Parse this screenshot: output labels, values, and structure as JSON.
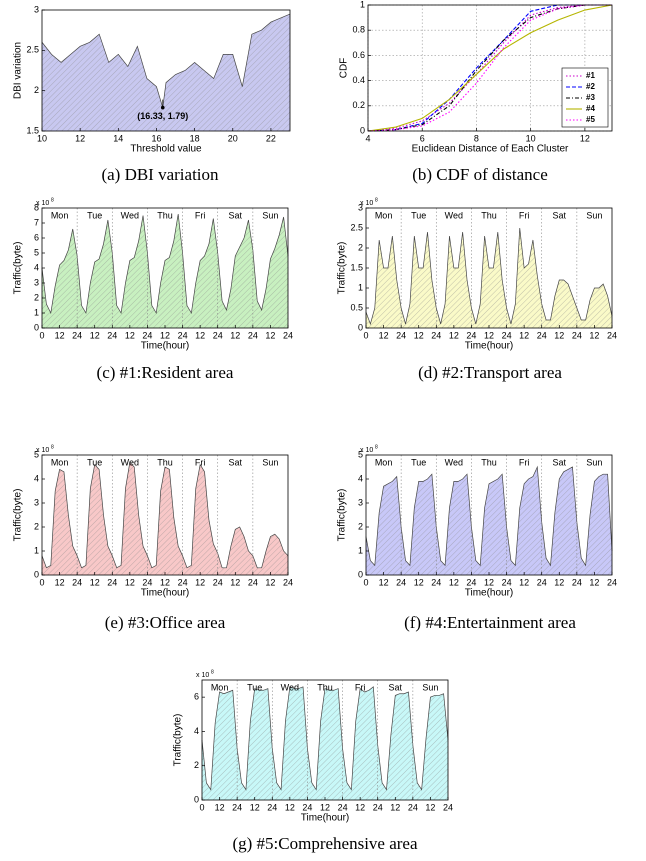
{
  "chart_data": [
    {
      "type": "area",
      "caption": "(a) DBI variation",
      "x_label": "Threshold value",
      "y_label": "DBI variation",
      "color": "#c8c8f0",
      "x": [
        10,
        10.5,
        11,
        11.5,
        12,
        12.5,
        13,
        13.5,
        14,
        14.5,
        15,
        15.5,
        16,
        16.33,
        16.5,
        17,
        17.5,
        18,
        18.5,
        19,
        19.5,
        20,
        20.5,
        21,
        21.5,
        22,
        22.5,
        23
      ],
      "values": [
        2.6,
        2.45,
        2.35,
        2.45,
        2.55,
        2.6,
        2.7,
        2.35,
        2.45,
        2.3,
        2.55,
        2.15,
        2.05,
        1.79,
        2.1,
        2.2,
        2.25,
        2.35,
        2.25,
        2.15,
        2.45,
        2.45,
        2.05,
        2.7,
        2.75,
        2.85,
        2.9,
        2.95
      ],
      "xlim": [
        10,
        23
      ],
      "xticks": [
        10,
        12,
        14,
        16,
        18,
        20,
        22
      ],
      "ylim": [
        1.5,
        3
      ],
      "yticks": [
        1.5,
        2,
        2.5,
        3
      ],
      "grid": false,
      "annotation": {
        "text": "(16.33, 1.79)",
        "x": 16.33,
        "y": 1.79
      }
    },
    {
      "type": "line",
      "caption": "(b) CDF of distance",
      "x_label": "Euclidean Distance of Each Cluster",
      "y_label": "CDF",
      "x": [
        4,
        5,
        6,
        7,
        8,
        9,
        10,
        11,
        12,
        13
      ],
      "series": [
        {
          "name": "#1",
          "color": "#cc00cc",
          "linestyle": ":",
          "values": [
            0,
            0.02,
            0.08,
            0.22,
            0.45,
            0.7,
            0.92,
            0.98,
            1,
            1
          ]
        },
        {
          "name": "#2",
          "color": "#0000ff",
          "linestyle": "--",
          "values": [
            0,
            0.01,
            0.06,
            0.25,
            0.5,
            0.72,
            0.95,
            1,
            1,
            1
          ]
        },
        {
          "name": "#3",
          "color": "#000000",
          "linestyle": "-.",
          "values": [
            0,
            0.01,
            0.05,
            0.2,
            0.48,
            0.72,
            0.9,
            0.97,
            1,
            1
          ]
        },
        {
          "name": "#4",
          "color": "#b5b500",
          "linestyle": "-",
          "values": [
            0,
            0.03,
            0.1,
            0.25,
            0.45,
            0.65,
            0.78,
            0.88,
            0.96,
            1
          ]
        },
        {
          "name": "#5",
          "color": "#ff00ff",
          "linestyle": ":",
          "values": [
            0,
            0.01,
            0.04,
            0.15,
            0.38,
            0.66,
            0.88,
            0.97,
            1,
            1
          ]
        }
      ],
      "xlim": [
        4,
        13
      ],
      "xticks": [
        4,
        6,
        8,
        10,
        12
      ],
      "ylim": [
        0,
        1
      ],
      "yticks": [
        0,
        0.2,
        0.4,
        0.6,
        0.8,
        1
      ],
      "grid": true,
      "legend": "lower right"
    },
    {
      "type": "area",
      "caption": "(c) #1:Resident area",
      "x_label": "Time(hour)",
      "y_label": "Traffic(byte)",
      "color": "#c8f0c0",
      "y_multiplier": {
        "base": "x 10",
        "exponent": "8"
      },
      "days": [
        "Mon",
        "Tue",
        "Wed",
        "Thu",
        "Fri",
        "Sat",
        "Sun"
      ],
      "x": [
        0,
        3,
        6,
        9,
        12,
        15,
        18,
        21,
        24,
        27,
        30,
        33,
        36,
        39,
        42,
        45,
        48,
        51,
        54,
        57,
        60,
        63,
        66,
        69,
        72,
        75,
        78,
        81,
        84,
        87,
        90,
        93,
        96,
        99,
        102,
        105,
        108,
        111,
        114,
        117,
        120,
        123,
        126,
        129,
        132,
        135,
        138,
        141,
        144,
        147,
        150,
        153,
        156,
        159,
        162,
        165,
        168
      ],
      "values": [
        4.0,
        1.6,
        1.0,
        2.8,
        4.2,
        4.5,
        5.2,
        6.6,
        4.8,
        1.5,
        1.0,
        3.0,
        4.4,
        4.6,
        5.6,
        7.2,
        5.0,
        1.5,
        1.0,
        3.0,
        4.5,
        4.7,
        5.8,
        7.5,
        5.0,
        1.5,
        1.0,
        3.0,
        4.5,
        4.7,
        5.8,
        7.6,
        5.0,
        1.5,
        1.0,
        3.0,
        4.5,
        4.8,
        5.6,
        7.3,
        5.0,
        1.8,
        1.2,
        2.6,
        4.8,
        5.4,
        6.0,
        7.2,
        5.2,
        1.8,
        1.2,
        2.6,
        4.6,
        5.3,
        6.2,
        7.4,
        4.8
      ],
      "xlim": [
        0,
        168
      ],
      "xticks": [
        0,
        12,
        24,
        {
          "value": 36,
          "label": "12"
        },
        {
          "value": 48,
          "label": "24"
        },
        {
          "value": 60,
          "label": "12"
        },
        {
          "value": 72,
          "label": "24"
        },
        {
          "value": 84,
          "label": "12"
        },
        {
          "value": 96,
          "label": "24"
        },
        {
          "value": 108,
          "label": "12"
        },
        {
          "value": 120,
          "label": "24"
        },
        {
          "value": 132,
          "label": "12"
        },
        {
          "value": 144,
          "label": "24"
        },
        {
          "value": 156,
          "label": "12"
        },
        {
          "value": 168,
          "label": "24"
        }
      ],
      "ylim": [
        0,
        8
      ],
      "yticks": [
        0,
        1,
        2,
        3,
        4,
        5,
        6,
        7,
        8
      ],
      "grid": false
    },
    {
      "type": "area",
      "caption": "(d) #2:Transport area",
      "x_label": "Time(hour)",
      "y_label": "Traffic(byte)",
      "color": "#fafac8",
      "y_multiplier": {
        "base": "x 10",
        "exponent": "8"
      },
      "days": [
        "Mon",
        "Tue",
        "Wed",
        "Thu",
        "Fri",
        "Sat",
        "Sun"
      ],
      "x": [
        0,
        3,
        6,
        9,
        12,
        15,
        18,
        21,
        24,
        27,
        30,
        33,
        36,
        39,
        42,
        45,
        48,
        51,
        54,
        57,
        60,
        63,
        66,
        69,
        72,
        75,
        78,
        81,
        84,
        87,
        90,
        93,
        96,
        99,
        102,
        105,
        108,
        111,
        114,
        117,
        120,
        123,
        126,
        129,
        132,
        135,
        138,
        141,
        144,
        147,
        150,
        153,
        156,
        159,
        162,
        165,
        168
      ],
      "values": [
        0.4,
        0.1,
        0.5,
        2.2,
        1.5,
        1.5,
        2.3,
        1.2,
        0.5,
        0.1,
        0.6,
        2.3,
        1.5,
        1.5,
        2.4,
        1.2,
        0.5,
        0.1,
        0.6,
        2.3,
        1.5,
        1.5,
        2.4,
        1.2,
        0.5,
        0.1,
        0.6,
        2.3,
        1.5,
        1.5,
        2.4,
        1.2,
        0.5,
        0.1,
        0.6,
        2.5,
        1.5,
        1.6,
        2.2,
        1.3,
        0.6,
        0.2,
        0.2,
        0.8,
        1.2,
        1.2,
        1.1,
        0.8,
        0.5,
        0.2,
        0.2,
        0.7,
        1.0,
        1.0,
        1.1,
        0.8,
        0.3
      ],
      "xlim": [
        0,
        168
      ],
      "xticks": [
        0,
        12,
        24,
        {
          "value": 36,
          "label": "12"
        },
        {
          "value": 48,
          "label": "24"
        },
        {
          "value": 60,
          "label": "12"
        },
        {
          "value": 72,
          "label": "24"
        },
        {
          "value": 84,
          "label": "12"
        },
        {
          "value": 96,
          "label": "24"
        },
        {
          "value": 108,
          "label": "12"
        },
        {
          "value": 120,
          "label": "24"
        },
        {
          "value": 132,
          "label": "12"
        },
        {
          "value": 144,
          "label": "24"
        },
        {
          "value": 156,
          "label": "12"
        },
        {
          "value": 168,
          "label": "24"
        }
      ],
      "ylim": [
        0,
        3
      ],
      "yticks": [
        0,
        0.5,
        1,
        1.5,
        2,
        2.5,
        3
      ],
      "grid": false
    },
    {
      "type": "area",
      "caption": "(e) #3:Office area",
      "x_label": "Time(hour)",
      "y_label": "Traffic(byte)",
      "color": "#f8c8c8",
      "y_multiplier": {
        "base": "x 10",
        "exponent": "8"
      },
      "days": [
        "Mon",
        "Tue",
        "Wed",
        "Thu",
        "Fri",
        "Sat",
        "Sun"
      ],
      "x": [
        0,
        3,
        6,
        9,
        12,
        15,
        18,
        21,
        24,
        27,
        30,
        33,
        36,
        39,
        42,
        45,
        48,
        51,
        54,
        57,
        60,
        63,
        66,
        69,
        72,
        75,
        78,
        81,
        84,
        87,
        90,
        93,
        96,
        99,
        102,
        105,
        108,
        111,
        114,
        117,
        120,
        123,
        126,
        129,
        132,
        135,
        138,
        141,
        144,
        147,
        150,
        153,
        156,
        159,
        162,
        165,
        168
      ],
      "values": [
        0.8,
        0.3,
        0.4,
        3.5,
        4.4,
        4.3,
        2.5,
        1.2,
        0.8,
        0.3,
        0.4,
        3.6,
        4.6,
        4.4,
        2.5,
        1.2,
        0.8,
        0.3,
        0.4,
        3.6,
        4.7,
        4.5,
        2.5,
        1.2,
        0.8,
        0.3,
        0.4,
        3.5,
        4.5,
        4.4,
        2.4,
        1.2,
        0.8,
        0.3,
        0.4,
        3.6,
        4.6,
        4.3,
        2.3,
        1.3,
        0.9,
        0.3,
        0.3,
        1.2,
        1.9,
        2.0,
        1.6,
        1.0,
        0.8,
        0.3,
        0.3,
        1.0,
        1.6,
        1.7,
        1.5,
        1.0,
        0.8
      ],
      "xlim": [
        0,
        168
      ],
      "xticks": [
        0,
        12,
        24,
        {
          "value": 36,
          "label": "12"
        },
        {
          "value": 48,
          "label": "24"
        },
        {
          "value": 60,
          "label": "12"
        },
        {
          "value": 72,
          "label": "24"
        },
        {
          "value": 84,
          "label": "12"
        },
        {
          "value": 96,
          "label": "24"
        },
        {
          "value": 108,
          "label": "12"
        },
        {
          "value": 120,
          "label": "24"
        },
        {
          "value": 132,
          "label": "12"
        },
        {
          "value": 144,
          "label": "24"
        },
        {
          "value": 156,
          "label": "12"
        },
        {
          "value": 168,
          "label": "24"
        }
      ],
      "ylim": [
        0,
        5
      ],
      "yticks": [
        0,
        1,
        2,
        3,
        4,
        5
      ],
      "grid": false
    },
    {
      "type": "area",
      "caption": "(f) #4:Entertainment area",
      "x_label": "Time(hour)",
      "y_label": "Traffic(byte)",
      "color": "#c8c8f8",
      "y_multiplier": {
        "base": "x 10",
        "exponent": "8"
      },
      "days": [
        "Mon",
        "Tue",
        "Wed",
        "Thu",
        "Fri",
        "Sat",
        "Sun"
      ],
      "x": [
        0,
        3,
        6,
        9,
        12,
        15,
        18,
        21,
        24,
        27,
        30,
        33,
        36,
        39,
        42,
        45,
        48,
        51,
        54,
        57,
        60,
        63,
        66,
        69,
        72,
        75,
        78,
        81,
        84,
        87,
        90,
        93,
        96,
        99,
        102,
        105,
        108,
        111,
        114,
        117,
        120,
        123,
        126,
        129,
        132,
        135,
        138,
        141,
        144,
        147,
        150,
        153,
        156,
        159,
        162,
        165,
        168
      ],
      "values": [
        1.6,
        0.6,
        0.4,
        2.6,
        3.7,
        3.8,
        3.9,
        4.1,
        2.0,
        0.6,
        0.4,
        2.8,
        3.9,
        3.9,
        4.0,
        4.2,
        2.0,
        0.6,
        0.4,
        2.8,
        3.9,
        3.9,
        4.0,
        4.2,
        2.0,
        0.6,
        0.4,
        2.8,
        3.8,
        3.9,
        4.0,
        4.2,
        2.0,
        0.6,
        0.4,
        2.8,
        3.8,
        4.0,
        4.1,
        4.5,
        2.2,
        0.7,
        0.4,
        2.6,
        4.0,
        4.3,
        4.4,
        4.5,
        2.2,
        0.7,
        0.4,
        2.5,
        3.9,
        4.1,
        4.2,
        4.2,
        1.0
      ],
      "xlim": [
        0,
        168
      ],
      "xticks": [
        0,
        12,
        24,
        {
          "value": 36,
          "label": "12"
        },
        {
          "value": 48,
          "label": "24"
        },
        {
          "value": 60,
          "label": "12"
        },
        {
          "value": 72,
          "label": "24"
        },
        {
          "value": 84,
          "label": "12"
        },
        {
          "value": 96,
          "label": "24"
        },
        {
          "value": 108,
          "label": "12"
        },
        {
          "value": 120,
          "label": "24"
        },
        {
          "value": 132,
          "label": "12"
        },
        {
          "value": 144,
          "label": "24"
        },
        {
          "value": 156,
          "label": "12"
        },
        {
          "value": 168,
          "label": "24"
        }
      ],
      "ylim": [
        0,
        5
      ],
      "yticks": [
        0,
        1,
        2,
        3,
        4,
        5
      ],
      "grid": false
    },
    {
      "type": "area",
      "caption": "(g) #5:Comprehensive area",
      "x_label": "Time(hour)",
      "y_label": "Traffic(byte)",
      "color": "#c8f8f8",
      "y_multiplier": {
        "base": "x 10",
        "exponent": "8"
      },
      "days": [
        "Mon",
        "Tue",
        "Wed",
        "Thu",
        "Fri",
        "Sat",
        "Sun"
      ],
      "x": [
        0,
        3,
        6,
        9,
        12,
        15,
        18,
        21,
        24,
        27,
        30,
        33,
        36,
        39,
        42,
        45,
        48,
        51,
        54,
        57,
        60,
        63,
        66,
        69,
        72,
        75,
        78,
        81,
        84,
        87,
        90,
        93,
        96,
        99,
        102,
        105,
        108,
        111,
        114,
        117,
        120,
        123,
        126,
        129,
        132,
        135,
        138,
        141,
        144,
        147,
        150,
        153,
        156,
        159,
        162,
        165,
        168
      ],
      "values": [
        3.5,
        1.0,
        0.6,
        4.5,
        6.3,
        6.2,
        6.3,
        6.4,
        3.0,
        1.0,
        0.6,
        4.6,
        6.5,
        6.4,
        6.4,
        6.5,
        3.0,
        1.0,
        0.6,
        4.6,
        6.6,
        6.5,
        6.5,
        6.6,
        3.0,
        1.0,
        0.6,
        4.6,
        6.5,
        6.4,
        6.4,
        6.5,
        3.0,
        1.0,
        0.6,
        4.6,
        6.5,
        6.3,
        6.4,
        6.6,
        3.2,
        1.0,
        0.6,
        3.8,
        6.1,
        6.2,
        6.2,
        6.3,
        3.2,
        1.0,
        0.6,
        3.6,
        6.0,
        6.1,
        6.1,
        6.2,
        3.5
      ],
      "xlim": [
        0,
        168
      ],
      "xticks": [
        0,
        12,
        24,
        {
          "value": 36,
          "label": "12"
        },
        {
          "value": 48,
          "label": "24"
        },
        {
          "value": 60,
          "label": "12"
        },
        {
          "value": 72,
          "label": "24"
        },
        {
          "value": 84,
          "label": "12"
        },
        {
          "value": 96,
          "label": "24"
        },
        {
          "value": 108,
          "label": "12"
        },
        {
          "value": 120,
          "label": "24"
        },
        {
          "value": 132,
          "label": "12"
        },
        {
          "value": 144,
          "label": "24"
        },
        {
          "value": 156,
          "label": "12"
        },
        {
          "value": 168,
          "label": "24"
        }
      ],
      "ylim": [
        0,
        7
      ],
      "yticks": [
        0,
        2,
        4,
        6
      ],
      "grid": false
    }
  ]
}
